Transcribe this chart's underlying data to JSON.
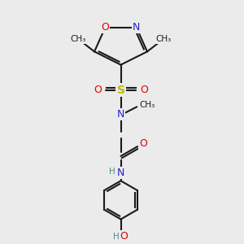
{
  "bg_color": "#ebebeb",
  "bond_color": "#1a1a1a",
  "o_color": "#dd0000",
  "n_color": "#2222cc",
  "s_color": "#bbbb00",
  "h_color": "#558888",
  "fig_w": 3.0,
  "fig_h": 3.0,
  "dpi": 100,
  "xlim": [
    0,
    10
  ],
  "ylim": [
    0,
    10
  ],
  "lw": 1.5,
  "fs": 9.0,
  "sf": 7.5
}
